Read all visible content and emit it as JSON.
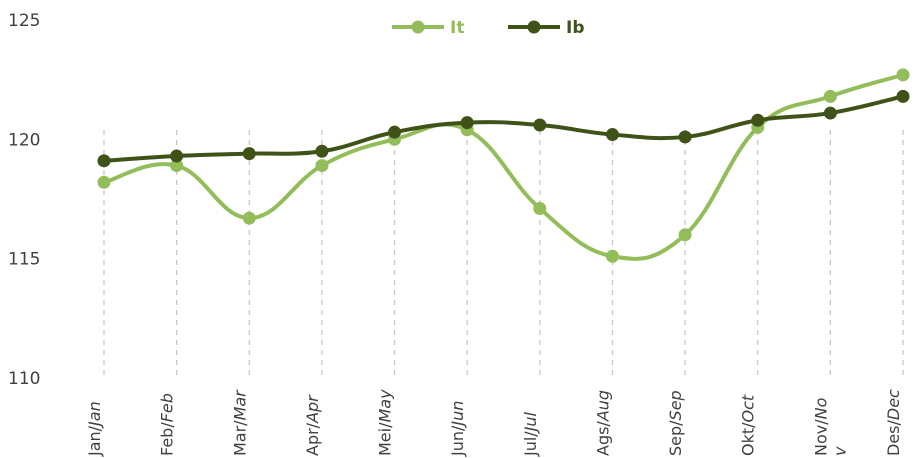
{
  "chart_data": {
    "type": "line",
    "categories": [
      {
        "main": "Jan/",
        "alt": "Jan"
      },
      {
        "main": "Feb/",
        "alt": "Feb"
      },
      {
        "main": "Mar/",
        "alt": "Mar"
      },
      {
        "main": "Apr/",
        "alt": "Apr"
      },
      {
        "main": "Mei/",
        "alt": "May"
      },
      {
        "main": "Jun/",
        "alt": "Jun"
      },
      {
        "main": "Jul/",
        "alt": "Jul"
      },
      {
        "main": "Ags/",
        "alt": "Aug"
      },
      {
        "main": "Sep/",
        "alt": "Sep"
      },
      {
        "main": "Okt/",
        "alt": "Oct"
      },
      {
        "main": "Nov/",
        "alt": "No",
        "wrap": "v"
      },
      {
        "main": "Des/",
        "alt": "Dec"
      }
    ],
    "series": [
      {
        "name": "It",
        "color": "#92bd5a",
        "values": [
          118.2,
          118.9,
          116.7,
          118.9,
          120.0,
          120.4,
          117.1,
          115.1,
          116.0,
          120.5,
          121.8,
          122.7
        ]
      },
      {
        "name": "Ib",
        "color": "#3f5319",
        "values": [
          119.1,
          119.3,
          119.4,
          119.5,
          120.3,
          120.7,
          120.6,
          120.2,
          120.1,
          120.8,
          121.1,
          121.8
        ]
      }
    ],
    "ylim": [
      110,
      125
    ],
    "yticks": [
      110,
      115,
      120,
      125
    ],
    "xlabel": "",
    "ylabel": "",
    "title": "",
    "grid": "vertical dashed",
    "legend": "top-center",
    "gridColor": "#c8c8c8"
  }
}
